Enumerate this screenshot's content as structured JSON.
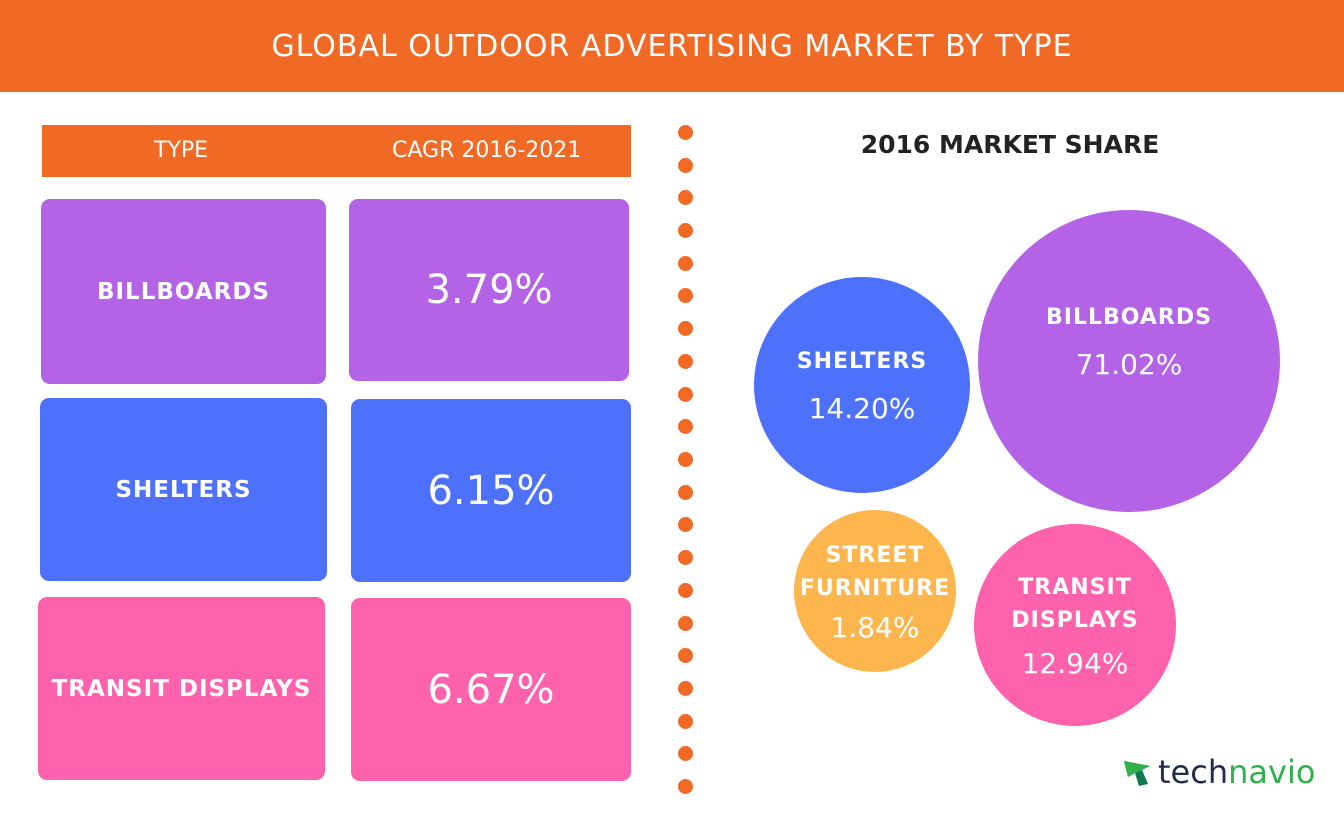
{
  "title": "GLOBAL OUTDOOR ADVERTISING MARKET BY TYPE",
  "colors": {
    "accent": "#f06a26",
    "billboards": "#b462e6",
    "shelters": "#4d71fb",
    "transit_displays": "#ff62ad",
    "street_furniture": "#fdb54d"
  },
  "table": {
    "col_type": "TYPE",
    "col_cagr": "CAGR 2016-2021",
    "rows": [
      {
        "type": "BILLBOARDS",
        "cagr": "3.79%"
      },
      {
        "type": "SHELTERS",
        "cagr": "6.15%"
      },
      {
        "type": "TRANSIT DISPLAYS",
        "cagr": "6.67%"
      }
    ]
  },
  "market_share": {
    "title": "2016 MARKET SHARE",
    "bubbles": [
      {
        "label_lines": [
          "SHELTERS"
        ],
        "value": "14.20%"
      },
      {
        "label_lines": [
          "BILLBOARDS"
        ],
        "value": "71.02%"
      },
      {
        "label_lines": [
          "STREET",
          "FURNITURE"
        ],
        "value": "1.84%"
      },
      {
        "label_lines": [
          "TRANSIT",
          "DISPLAYS"
        ],
        "value": "12.94%"
      }
    ]
  },
  "chart_data": [
    {
      "type": "table",
      "title": "GLOBAL OUTDOOR ADVERTISING MARKET BY TYPE",
      "columns": [
        "TYPE",
        "CAGR 2016-2021"
      ],
      "categories": [
        "BILLBOARDS",
        "SHELTERS",
        "TRANSIT DISPLAYS"
      ],
      "values": [
        3.79,
        6.15,
        6.67
      ],
      "unit": "%"
    },
    {
      "type": "pie",
      "title": "2016 MARKET SHARE",
      "categories": [
        "SHELTERS",
        "BILLBOARDS",
        "STREET FURNITURE",
        "TRANSIT DISPLAYS"
      ],
      "values": [
        14.2,
        71.02,
        1.84,
        12.94
      ],
      "unit": "%"
    }
  ],
  "logo": {
    "part1": "tech",
    "part2": "navio",
    "icon": "technavio-arrow-icon"
  }
}
